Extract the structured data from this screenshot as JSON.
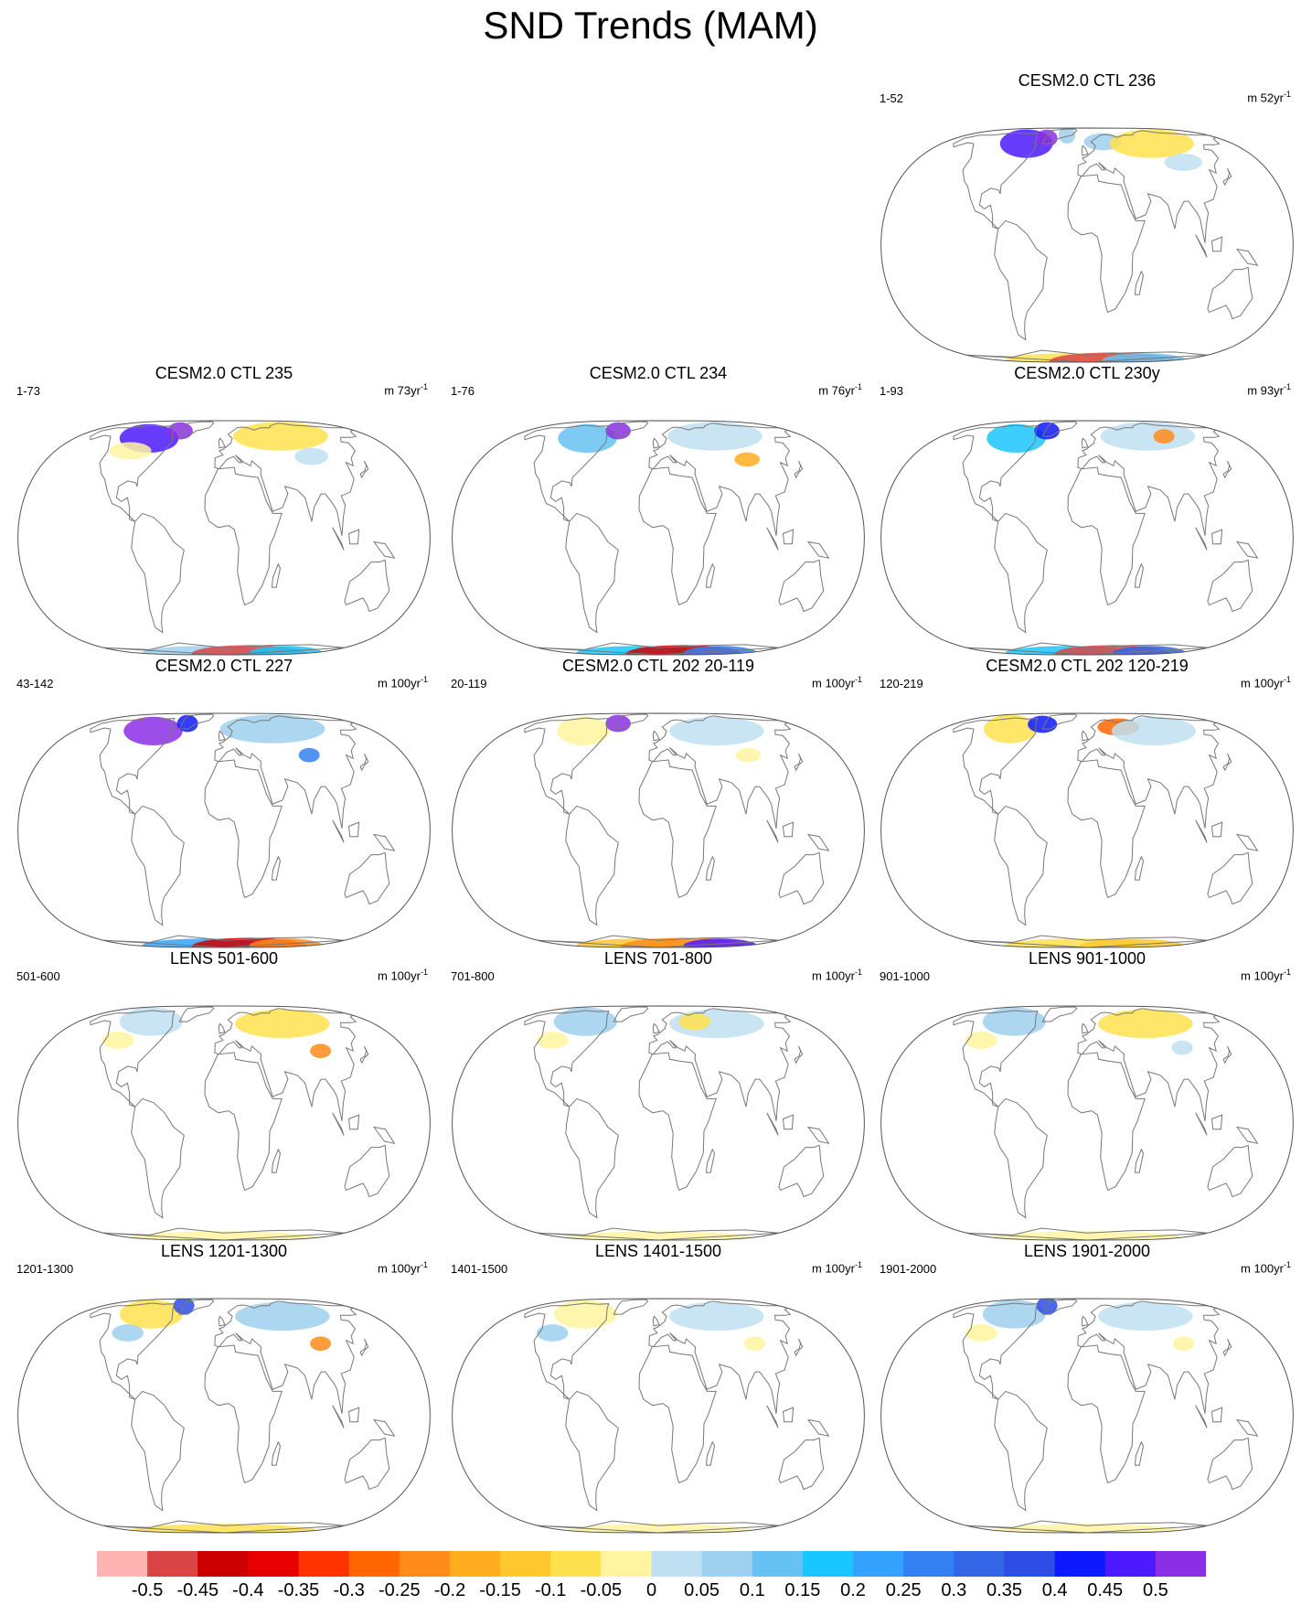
{
  "title": "SND Trends (MAM)",
  "colors": {
    "map_outline": "#555555",
    "coast": "#777777"
  },
  "panels": [
    {
      "title": "CESM2.0 CTL 236",
      "range": "1-52",
      "unit_value": "52",
      "unit_prefix": "m ",
      "unit_suffix": "yr",
      "unit_exp": "-1"
    },
    {
      "title": "CESM2.0 CTL 235",
      "range": "1-73",
      "unit_value": "73",
      "unit_prefix": "m ",
      "unit_suffix": "yr",
      "unit_exp": "-1"
    },
    {
      "title": "CESM2.0 CTL 234",
      "range": "1-76",
      "unit_value": "76",
      "unit_prefix": "m ",
      "unit_suffix": "yr",
      "unit_exp": "-1"
    },
    {
      "title": "CESM2.0 CTL 230y",
      "range": "1-93",
      "unit_value": "93",
      "unit_prefix": "m ",
      "unit_suffix": "yr",
      "unit_exp": "-1"
    },
    {
      "title": "CESM2.0 CTL 227",
      "range": "43-142",
      "unit_value": "100",
      "unit_prefix": "m ",
      "unit_suffix": "yr",
      "unit_exp": "-1"
    },
    {
      "title": "CESM2.0 CTL 202 20-119",
      "range": "20-119",
      "unit_value": "100",
      "unit_prefix": "m ",
      "unit_suffix": "yr",
      "unit_exp": "-1"
    },
    {
      "title": "CESM2.0 CTL 202 120-219",
      "range": "120-219",
      "unit_value": "100",
      "unit_prefix": "m ",
      "unit_suffix": "yr",
      "unit_exp": "-1"
    },
    {
      "title": "LENS 501-600",
      "range": "501-600",
      "unit_value": "100",
      "unit_prefix": "m ",
      "unit_suffix": "yr",
      "unit_exp": "-1"
    },
    {
      "title": "LENS 701-800",
      "range": "701-800",
      "unit_value": "100",
      "unit_prefix": "m ",
      "unit_suffix": "yr",
      "unit_exp": "-1"
    },
    {
      "title": "LENS 901-1000",
      "range": "901-1000",
      "unit_value": "100",
      "unit_prefix": "m ",
      "unit_suffix": "yr",
      "unit_exp": "-1"
    },
    {
      "title": "LENS 1201-1300",
      "range": "1201-1300",
      "unit_value": "100",
      "unit_prefix": "m ",
      "unit_suffix": "yr",
      "unit_exp": "-1"
    },
    {
      "title": "LENS 1401-1500",
      "range": "1401-1500",
      "unit_value": "100",
      "unit_prefix": "m ",
      "unit_suffix": "yr",
      "unit_exp": "-1"
    },
    {
      "title": "LENS 1901-2000",
      "range": "1901-2000",
      "unit_value": "100",
      "unit_prefix": "m ",
      "unit_suffix": "yr",
      "unit_exp": "-1"
    }
  ],
  "colorbar": {
    "colors": [
      "#ffb3b3",
      "#d94545",
      "#cc0000",
      "#e60000",
      "#ff3300",
      "#ff6600",
      "#ff8c1a",
      "#ffad1f",
      "#ffc82e",
      "#ffe14d",
      "#fff5a0",
      "#bfe0f2",
      "#9fd0ef",
      "#66c2f2",
      "#1ac6ff",
      "#33a3ff",
      "#3380f2",
      "#3366e6",
      "#2e4de6",
      "#0d1aff",
      "#4d1aff",
      "#8c2ee6"
    ],
    "labels": [
      "-0.5",
      "-0.45",
      "-0.4",
      "-0.35",
      "-0.3",
      "-0.25",
      "-0.2",
      "-0.15",
      "-0.1",
      "-0.05",
      "0",
      "0.05",
      "0.1",
      "0.15",
      "0.2",
      "0.25",
      "0.3",
      "0.35",
      "0.4",
      "0.45",
      "0.5"
    ]
  }
}
